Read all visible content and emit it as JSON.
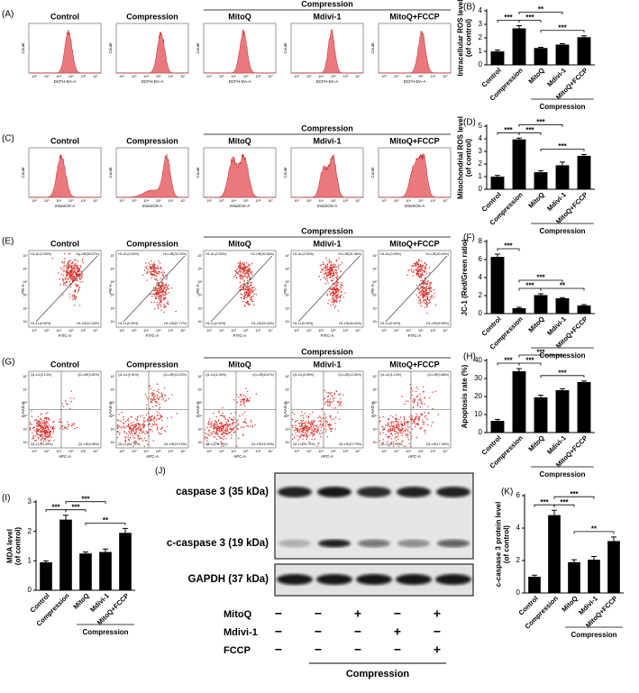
{
  "flow": [
    {
      "label": "(A)",
      "kind": "histogram",
      "group": "Compression",
      "titles": [
        "Control",
        "Compression",
        "MitoQ",
        "Mdivi-1",
        "MitoQ+FCCP"
      ],
      "xlabel": "DCFH-DA-A",
      "ylabel": "Count",
      "xticks": [
        "10²",
        "10³",
        "10⁴",
        "10⁵",
        "10⁶",
        "10⁷"
      ]
    },
    {
      "label": "(C)",
      "kind": "histogram",
      "group": "Compression",
      "titles": [
        "Control",
        "Compression",
        "MitoQ",
        "Mdivi-1",
        "MitoQ+FCCP"
      ],
      "xlabel": "mitoSOX-A",
      "ylabel": "Count",
      "xticks": [
        "10²",
        "10³",
        "10⁴",
        "10⁵",
        "10⁶",
        "10⁷"
      ]
    },
    {
      "label": "(E)",
      "kind": "jc1",
      "group": "Compression",
      "titles": [
        "Control",
        "Compression",
        "MitoQ",
        "Mdivi-1",
        "MitoQ+FCCP"
      ],
      "xlabel": "FITC-A",
      "ylabel": "PE-A",
      "xticks": [
        "10²",
        "10³",
        "10⁴",
        "10⁵",
        "10⁶",
        "10⁷"
      ],
      "yticks": [
        "10²",
        "10³",
        "10⁴",
        "10⁵",
        "10⁶",
        "10⁷"
      ],
      "quadrants": [
        [
          "H1-UL(0.00%)",
          "H1-UR(89.67%)",
          "H1-LL(0.00%)",
          "H1-LR(10.33%)"
        ],
        [
          "H1-UL(0.00%)",
          "H1-UR(32.23%)",
          "H1-LL(0.00%)",
          "H1-LR(67.77%)"
        ],
        [
          "H1-UL(0.00%)",
          "H1-UR(50.56%)",
          "H1-LL(0.00%)",
          "H1-LR(49.44%)"
        ],
        [
          "H1-UL(0.00%)",
          "H1-UR(51.58%)",
          "H1-LL(0.00%)",
          "H1-LR(48.42%)"
        ],
        [
          "H1-UL(0.00%)",
          "H1-UR(40.44%)",
          "H1-LL(0.00%)",
          "H1-LR(59.56%)"
        ]
      ]
    },
    {
      "label": "(G)",
      "kind": "apoptosis",
      "group": "Compression",
      "titles": [
        "Control",
        "Compression",
        "MitoQ",
        "Mdivi-1",
        "MitoQ+FCCP"
      ],
      "xlabel": "APC-A",
      "ylabel": "7-AAD-A",
      "xticks": [
        "10²",
        "10³",
        "10⁴",
        "10⁵",
        "10⁶",
        "10⁷"
      ],
      "yticks": [
        "10²",
        "10³",
        "10⁴",
        "10⁵",
        "10⁶",
        "10⁷"
      ],
      "quadrants": [
        [
          "Q1-UL(0.13%)",
          "Q1-UR(3.52%)",
          "Q1-LL(91.39%)",
          "Q1-LR(4.96%)"
        ],
        [
          "Q1-UL(0.91%)",
          "Q1-UR(15.23%)",
          "Q1-LL(64.73%)",
          "Q1-LR(19.13%)"
        ],
        [
          "Q1-UL(0.35%)",
          "Q1-UR(8.67%)",
          "Q1-LL(75.74%)",
          "Q1-LR(15.24%)"
        ],
        [
          "Q1-UL(0.95%)",
          "Q1-UR(12.52%)",
          "Q1-LL(75.74%)",
          "Q1-LR(10.79%)"
        ],
        [
          "Q1-UL(1.14%)",
          "Q1-UR(9.88%)",
          "Q1-LL(71.59%)",
          "Q1-LR(17.39%)"
        ]
      ]
    }
  ],
  "chart_data": [
    {
      "type": "bar",
      "label": "(B)",
      "ylabel": [
        "Intracellular ROS level",
        "(of control)"
      ],
      "categories": [
        "Control",
        "Compression",
        "MitoQ",
        "Mdivi-1",
        "MitoQ+FCCP"
      ],
      "group": "Compression",
      "values": [
        1.0,
        2.7,
        1.25,
        1.5,
        2.05
      ],
      "errors": [
        0.1,
        0.2,
        0.05,
        0.07,
        0.1
      ],
      "color": "#000000",
      "ylim": [
        0,
        4
      ],
      "yticks": [
        0,
        1,
        2,
        3,
        4
      ],
      "significance": [
        {
          "from": 0,
          "to": 1,
          "label": "***"
        },
        {
          "from": 1,
          "to": 2,
          "label": "***"
        },
        {
          "from": 1,
          "to": 3,
          "label": "**"
        },
        {
          "from": 2,
          "to": 4,
          "label": "***"
        }
      ]
    },
    {
      "type": "bar",
      "label": "(D)",
      "ylabel": [
        "Mitochondrial ROS level",
        "(of control)"
      ],
      "categories": [
        "Control",
        "Compression",
        "MitoQ",
        "Mdivi-1",
        "MitoQ+FCCP"
      ],
      "group": "Compression",
      "values": [
        1.0,
        3.95,
        1.35,
        1.9,
        2.65
      ],
      "errors": [
        0.1,
        0.1,
        0.12,
        0.25,
        0.1
      ],
      "color": "#000000",
      "ylim": [
        0,
        5
      ],
      "yticks": [
        0,
        1,
        2,
        3,
        4,
        5
      ],
      "significance": [
        {
          "from": 0,
          "to": 1,
          "label": "***"
        },
        {
          "from": 1,
          "to": 2,
          "label": "***"
        },
        {
          "from": 1,
          "to": 3,
          "label": "***"
        },
        {
          "from": 2,
          "to": 4,
          "label": "***"
        }
      ]
    },
    {
      "type": "bar",
      "label": "(F)",
      "ylabel": [
        "JC-1 (Red/Green ratio)"
      ],
      "categories": [
        "Control",
        "Compression",
        "MitoQ",
        "Mdivi-1",
        "MitoQ+FCCP"
      ],
      "group": "Compression",
      "values": [
        6.3,
        0.6,
        2.05,
        1.7,
        0.9
      ],
      "errors": [
        0.3,
        0.1,
        0.15,
        0.08,
        0.1
      ],
      "color": "#000000",
      "ylim": [
        0,
        8
      ],
      "yticks": [
        0,
        2,
        4,
        6,
        8
      ],
      "significance": [
        {
          "from": 0,
          "to": 1,
          "label": "***"
        },
        {
          "from": 1,
          "to": 2,
          "label": "***"
        },
        {
          "from": 1,
          "to": 3,
          "label": "***"
        },
        {
          "from": 2,
          "to": 4,
          "label": "**"
        }
      ]
    },
    {
      "type": "bar",
      "label": "(H)",
      "ylabel": [
        "Apoptosis rate (%)"
      ],
      "categories": [
        "Control",
        "Compression",
        "MitoQ",
        "Mdivi-1",
        "MitoQ+FCCP"
      ],
      "group": "Compression",
      "values": [
        6.5,
        34,
        19.5,
        23.5,
        28
      ],
      "errors": [
        0.8,
        1.5,
        1.2,
        0.8,
        0.6
      ],
      "color": "#000000",
      "ylim": [
        0,
        40
      ],
      "yticks": [
        0,
        10,
        20,
        30,
        40
      ],
      "significance": [
        {
          "from": 0,
          "to": 1,
          "label": "***"
        },
        {
          "from": 1,
          "to": 2,
          "label": "***"
        },
        {
          "from": 1,
          "to": 3,
          "label": "***"
        },
        {
          "from": 2,
          "to": 4,
          "label": "***"
        }
      ]
    },
    {
      "type": "bar",
      "label": "(I)",
      "ylabel": [
        "MDA level",
        "(of control)"
      ],
      "categories": [
        "Control",
        "Compression",
        "MitoQ",
        "Mdivi-1",
        "MitoQ+FCCP"
      ],
      "group": "Compression",
      "values": [
        0.95,
        2.4,
        1.25,
        1.3,
        1.95
      ],
      "errors": [
        0.05,
        0.15,
        0.05,
        0.1,
        0.15
      ],
      "color": "#000000",
      "ylim": [
        0,
        3
      ],
      "yticks": [
        0,
        1,
        2,
        3
      ],
      "significance": [
        {
          "from": 0,
          "to": 1,
          "label": "***"
        },
        {
          "from": 1,
          "to": 2,
          "label": "***"
        },
        {
          "from": 1,
          "to": 3,
          "label": "***"
        },
        {
          "from": 2,
          "to": 4,
          "label": "**"
        }
      ]
    },
    {
      "type": "bar",
      "label": "(K)",
      "ylabel": [
        "c-caspase 3 protein level",
        "(of control)"
      ],
      "categories": [
        "Control",
        "Compression",
        "MitoQ",
        "Mdivi-1",
        "MitoQ+FCCP"
      ],
      "group": "Compression",
      "values": [
        1.0,
        4.8,
        1.9,
        2.05,
        3.2
      ],
      "errors": [
        0.1,
        0.3,
        0.15,
        0.2,
        0.25
      ],
      "color": "#000000",
      "ylim": [
        0,
        6
      ],
      "yticks": [
        0,
        2,
        4,
        6
      ],
      "significance": [
        {
          "from": 0,
          "to": 1,
          "label": "***"
        },
        {
          "from": 1,
          "to": 2,
          "label": "***"
        },
        {
          "from": 1,
          "to": 3,
          "label": "***"
        },
        {
          "from": 2,
          "to": 4,
          "label": "**"
        }
      ]
    }
  ],
  "blot": {
    "label": "(J)",
    "bands": [
      "caspase 3 (35 kDa)",
      "c-caspase 3 (19 kDa)",
      "GAPDH (37 kDa)"
    ],
    "treatments": [
      {
        "name": "MitoQ",
        "signs": [
          "−",
          "−",
          "+",
          "−",
          "+"
        ]
      },
      {
        "name": "Mdivi-1",
        "signs": [
          "−",
          "−",
          "−",
          "+",
          "−"
        ]
      },
      {
        "name": "FCCP",
        "signs": [
          "−",
          "−",
          "−",
          "−",
          "+"
        ]
      }
    ],
    "group": "Compression"
  }
}
